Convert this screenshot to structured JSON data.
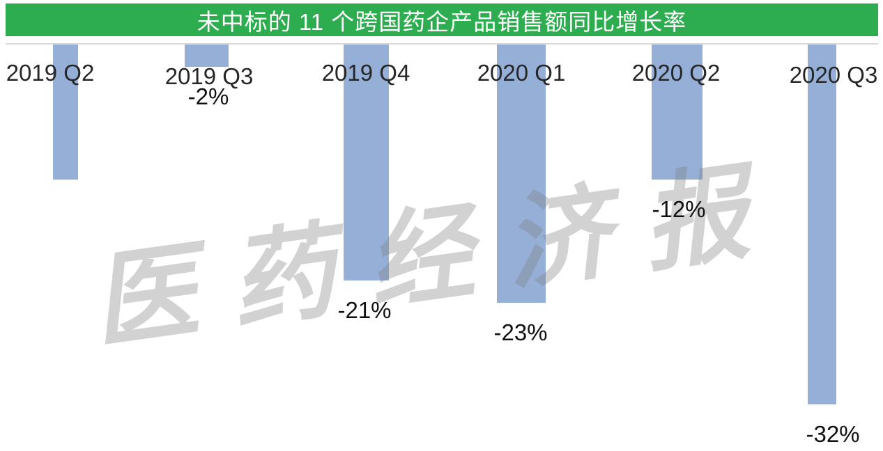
{
  "title": "未中标的 11 个跨国药企产品销售额同比增长率",
  "watermark_text": "医 药 经 济 报",
  "colors": {
    "title_background": "#2ead50",
    "title_text": "#ffffff",
    "bar_fill": "#96afd7",
    "axis_line": "#d9d9d9",
    "category_label": "#262626",
    "data_label": "#111111",
    "watermark": "#d3d3d3"
  },
  "chart_data": {
    "type": "bar",
    "title": "未中标的 11 个跨国药企产品销售额同比增长率",
    "categories": [
      "2019 Q2",
      "2019 Q3",
      "2019 Q4",
      "2020 Q1",
      "2020 Q2",
      "2020 Q3"
    ],
    "values": [
      -12,
      -2,
      -21,
      -23,
      -12,
      -32
    ],
    "unit": "%",
    "data_labels": [
      "",
      "-2%",
      "-21%",
      "-23%",
      "-12%",
      "-32%"
    ],
    "ylim": [
      -34,
      0
    ],
    "baseline": 0,
    "bar_direction": "down-from-top-baseline",
    "grid": false,
    "legend": false
  }
}
